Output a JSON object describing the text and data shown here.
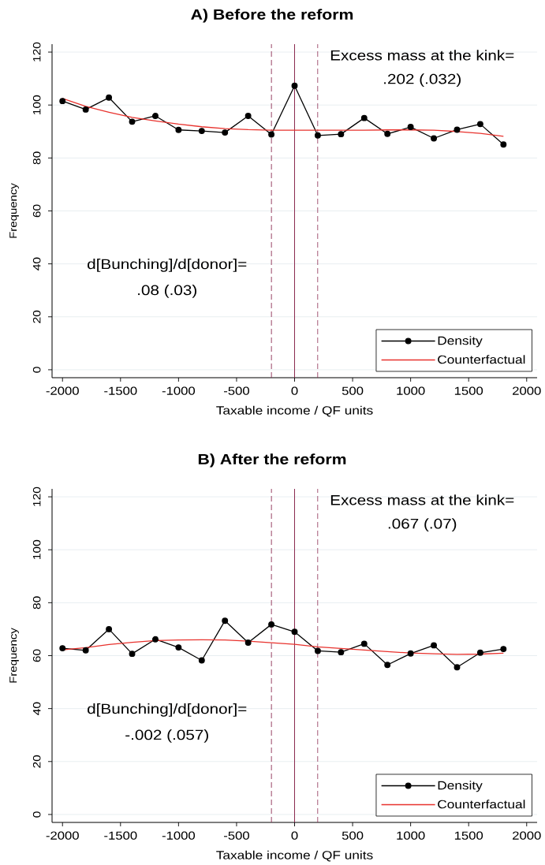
{
  "chart_data": [
    {
      "type": "line",
      "title": "A) Before the reform",
      "xlabel": "Taxable income / QF units",
      "ylabel": "Frequency",
      "x": [
        -2000,
        -1800,
        -1600,
        -1400,
        -1200,
        -1000,
        -800,
        -600,
        -400,
        -200,
        0,
        200,
        400,
        600,
        800,
        1000,
        1200,
        1400,
        1600,
        1800
      ],
      "series": [
        {
          "name": "Density",
          "color": "#000000",
          "marker": "circle",
          "values": [
            101.5,
            98.3,
            102.8,
            93.7,
            95.9,
            90.6,
            90.2,
            89.6,
            95.9,
            88.9,
            107.3,
            88.5,
            89.0,
            95.1,
            89.1,
            91.7,
            87.4,
            90.7,
            92.8,
            85.1
          ]
        },
        {
          "name": "Counterfactual",
          "color": "#e8322d",
          "marker": "none",
          "values": [
            102.5,
            99.5,
            97.3,
            95.3,
            94.0,
            92.8,
            91.8,
            91.1,
            90.7,
            90.5,
            90.5,
            90.5,
            90.5,
            90.5,
            90.6,
            90.6,
            90.5,
            90.0,
            89.3,
            88.2
          ]
        }
      ],
      "xlim": [
        -2090,
        2090
      ],
      "ylim": [
        -3,
        123
      ],
      "xticks": [
        -2000,
        -1500,
        -1000,
        -500,
        0,
        500,
        1000,
        1500,
        2000
      ],
      "yticks": [
        0,
        20,
        40,
        60,
        80,
        100,
        120
      ],
      "grid": "y",
      "legend": "bottom right",
      "ref_lines": [
        {
          "axis": "x",
          "value": -200,
          "color": "#8b2a50",
          "line_style": "dashed"
        },
        {
          "axis": "x",
          "value": 0,
          "color": "#8b2a50",
          "line_style": "solid"
        },
        {
          "axis": "x",
          "value": 200,
          "color": "#8b2a50",
          "line_style": "dashed"
        }
      ],
      "annotations": [
        "Excess mass at the kink=",
        ".202 (.032)",
        "d[Bunching]/d[donor]=",
        ".08 (.03)"
      ]
    },
    {
      "type": "line",
      "title": "B) After the reform",
      "xlabel": "Taxable income / QF units",
      "ylabel": "Frequency",
      "x": [
        -2000,
        -1800,
        -1600,
        -1400,
        -1200,
        -1000,
        -800,
        -600,
        -400,
        -200,
        0,
        200,
        400,
        600,
        800,
        1000,
        1200,
        1400,
        1600,
        1800
      ],
      "series": [
        {
          "name": "Density",
          "color": "#000000",
          "marker": "circle",
          "values": [
            62.8,
            62.0,
            70.0,
            60.7,
            66.2,
            63.1,
            58.2,
            73.2,
            64.9,
            71.8,
            69.0,
            61.8,
            61.3,
            64.5,
            56.5,
            60.8,
            63.9,
            55.6,
            61.1,
            62.5
          ]
        },
        {
          "name": "Counterfactual",
          "color": "#e8322d",
          "marker": "none",
          "values": [
            62.2,
            63.0,
            64.2,
            65.0,
            65.7,
            65.9,
            66.0,
            65.9,
            65.5,
            64.9,
            64.3,
            63.3,
            62.7,
            62.1,
            61.5,
            61.0,
            60.7,
            60.5,
            60.6,
            60.9
          ]
        }
      ],
      "xlim": [
        -2090,
        2090
      ],
      "ylim": [
        -3,
        123
      ],
      "xticks": [
        -2000,
        -1500,
        -1000,
        -500,
        0,
        500,
        1000,
        1500,
        2000
      ],
      "yticks": [
        0,
        20,
        40,
        60,
        80,
        100,
        120
      ],
      "grid": "y",
      "legend": "bottom right",
      "ref_lines": [
        {
          "axis": "x",
          "value": -200,
          "color": "#8b2a50",
          "line_style": "dashed"
        },
        {
          "axis": "x",
          "value": 0,
          "color": "#8b2a50",
          "line_style": "solid"
        },
        {
          "axis": "x",
          "value": 200,
          "color": "#8b2a50",
          "line_style": "dashed"
        }
      ],
      "annotations": [
        "Excess mass at the kink=",
        ".067 (.07)",
        "d[Bunching]/d[donor]=",
        "-.002 (.057)"
      ]
    }
  ]
}
